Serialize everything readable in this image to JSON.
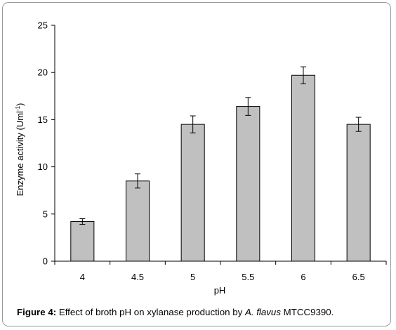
{
  "chart_data": {
    "type": "bar",
    "categories": [
      "4",
      "4.5",
      "5",
      "5.5",
      "6",
      "6.5"
    ],
    "values": [
      4.2,
      8.5,
      14.5,
      16.4,
      19.7,
      14.5
    ],
    "errors": [
      0.3,
      0.75,
      0.9,
      0.95,
      0.9,
      0.75
    ],
    "xlabel": "pH",
    "ylabel": "Enzyme activity (Uml",
    "ylabel_superscript": "-1",
    "ylabel_suffix": ")",
    "ylim": [
      0,
      25
    ],
    "yticks": [
      0,
      5,
      10,
      15,
      20,
      25
    ],
    "grid": false,
    "bar_color": "#c0c0c0"
  },
  "caption": {
    "label": "Figure 4:",
    "text_before": " Effect of broth pH on xylanase production by ",
    "organism": "A. flavus",
    "text_after": " MTCC9390."
  }
}
